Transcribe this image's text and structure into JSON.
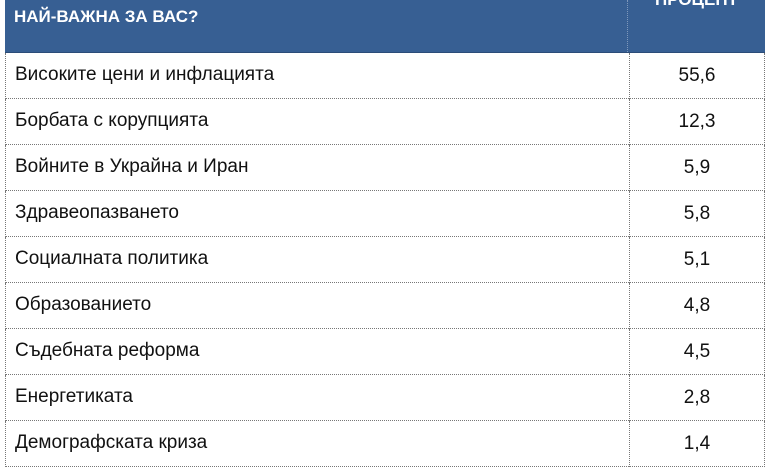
{
  "header": {
    "question": "НАЙ-ВАЖНА ЗА ВАС?",
    "percent": "ПРОЦЕНТ",
    "color": "#375f93"
  },
  "rows": [
    {
      "label": "Високите цени и инфлацията",
      "value": "55,6"
    },
    {
      "label": "Борбата с корупцията",
      "value": "12,3"
    },
    {
      "label": "Войните в Украйна и Иран",
      "value": "5,9"
    },
    {
      "label": "Здравеопазването",
      "value": "5,8"
    },
    {
      "label": "Социалната политика",
      "value": "5,1"
    },
    {
      "label": "Образованието",
      "value": "4,8"
    },
    {
      "label": "Съдебната реформа",
      "value": "4,5"
    },
    {
      "label": "Енергетиката",
      "value": "2,8"
    },
    {
      "label": "Демографската криза",
      "value": "1,4"
    }
  ]
}
